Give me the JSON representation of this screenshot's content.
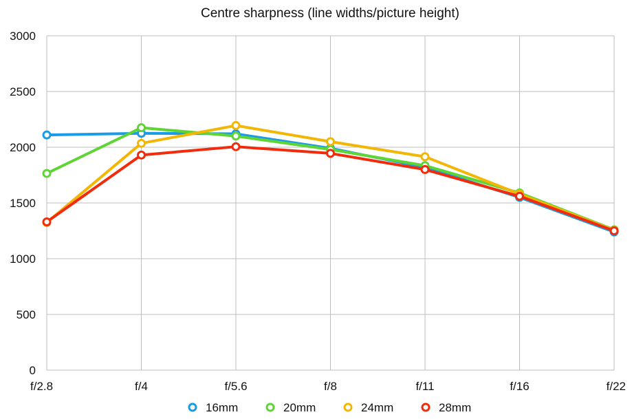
{
  "chart_data": {
    "type": "line",
    "title": "Centre sharpness (line widths/picture height)",
    "xlabel": "",
    "ylabel": "",
    "categories": [
      "f/2.8",
      "f/4",
      "f/5.6",
      "f/8",
      "f/11",
      "f/16",
      "f/22"
    ],
    "ylim": [
      0,
      3000
    ],
    "yticks": [
      0,
      500,
      1000,
      1500,
      2000,
      2500,
      3000
    ],
    "grid": true,
    "legend_position": "bottom",
    "series": [
      {
        "name": "16mm",
        "color": "#1a9be8",
        "values": [
          2110,
          2125,
          2120,
          1990,
          1820,
          1550,
          1240
        ]
      },
      {
        "name": "20mm",
        "color": "#5fd535",
        "values": [
          1765,
          2175,
          2100,
          1980,
          1835,
          1590,
          1260
        ]
      },
      {
        "name": "24mm",
        "color": "#f2b705",
        "values": [
          1325,
          2035,
          2195,
          2050,
          1915,
          1580,
          1255
        ]
      },
      {
        "name": "28mm",
        "color": "#f02c0c",
        "values": [
          1330,
          1930,
          2005,
          1945,
          1800,
          1560,
          1250
        ]
      }
    ]
  }
}
